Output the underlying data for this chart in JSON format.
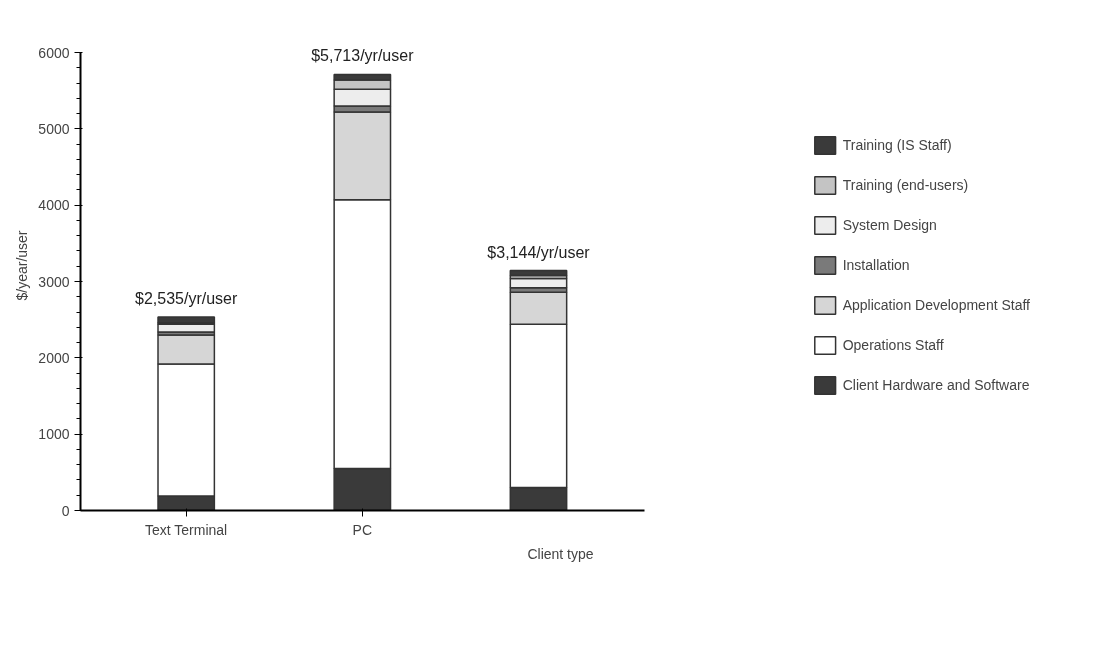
{
  "chart_data": {
    "type": "bar",
    "stacked": true,
    "xlabel": "Client type",
    "ylabel": "$/year/user",
    "categories": [
      "Text Terminal",
      "PC",
      null
    ],
    "series": [
      {
        "name": "Client Hardware and Software",
        "color": "#3a3a3a",
        "values": [
          190,
          550,
          300
        ]
      },
      {
        "name": "Operations Staff",
        "color": "#ffffff",
        "values": [
          1730,
          3520,
          2140
        ]
      },
      {
        "name": "Application Development Staff",
        "color": "#d6d6d6",
        "values": [
          380,
          1150,
          420
        ]
      },
      {
        "name": "Installation",
        "color": "#7a7a7a",
        "values": [
          40,
          80,
          60
        ]
      },
      {
        "name": "System Design",
        "color": "#ededed",
        "values": [
          100,
          220,
          120
        ]
      },
      {
        "name": "Training (end-users)",
        "color": "#c4c4c4",
        "values": [
          20,
          120,
          40
        ]
      },
      {
        "name": "Training (IS Staff)",
        "color": "#3a3a3a",
        "values": [
          75,
          73,
          64
        ]
      }
    ],
    "totals": [
      "$2,535/yr/user",
      "$5,713/yr/user",
      "$3,144/yr/user"
    ],
    "ylim": [
      0,
      6000
    ],
    "yticks": [
      0,
      1000,
      2000,
      3000,
      4000,
      5000,
      6000
    ],
    "grid": false,
    "legend": "right"
  }
}
